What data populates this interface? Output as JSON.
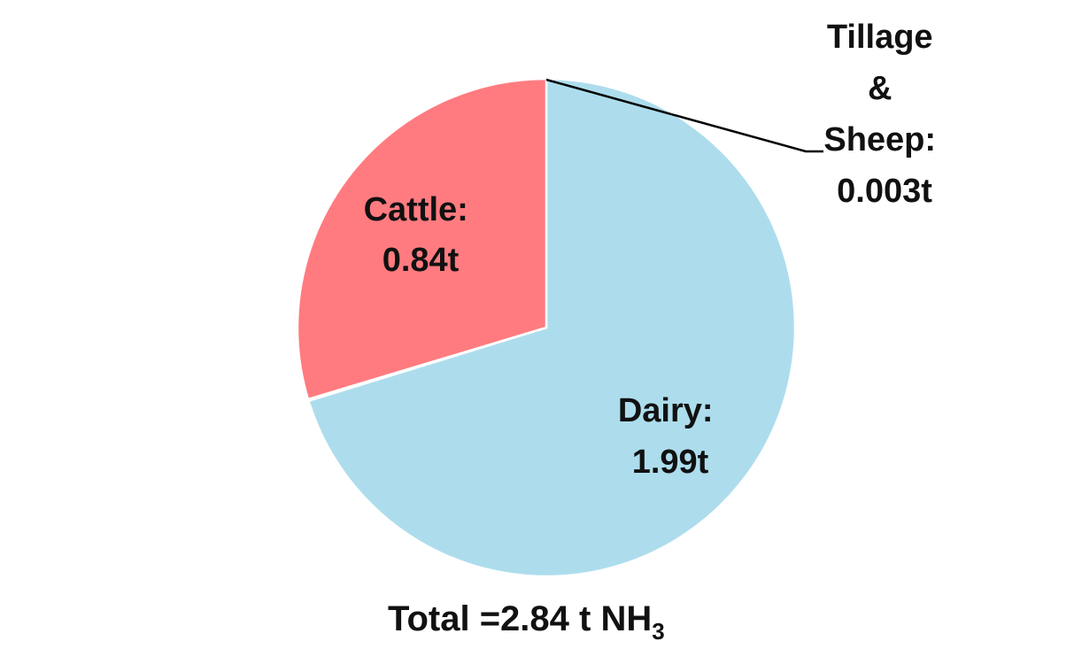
{
  "chart_data": {
    "type": "pie",
    "slices": [
      {
        "name": "Dairy",
        "value": 1.99,
        "label_line1": "Dairy:",
        "label_line2": "1.99t",
        "color": "#ADDDED"
      },
      {
        "name": "Tillage & Sheep",
        "value": 0.003,
        "label_lines": [
          "Tillage",
          "&",
          "Sheep:",
          "0.003t"
        ],
        "color": "#ADDDED"
      },
      {
        "name": "Cattle",
        "value": 0.84,
        "label_line1": "Cattle:",
        "label_line2": "0.84t",
        "color": "#FF7B80"
      }
    ],
    "total_text": "Total =2.84 t NH",
    "total_subscript": "3",
    "slice_border_color": "#ffffff",
    "leader_line_color": "#000000"
  }
}
